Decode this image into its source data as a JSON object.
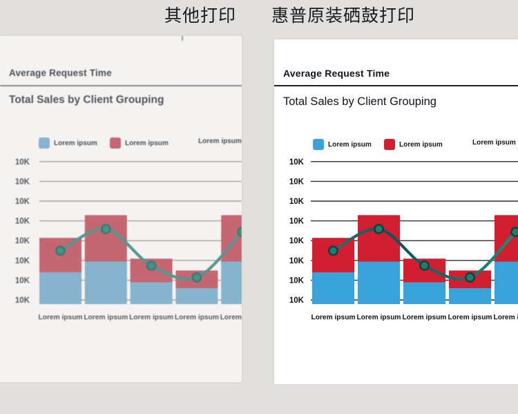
{
  "comparison": {
    "left_label": "其他打印",
    "right_label": "惠普原装硒鼓打印"
  },
  "document": {
    "header": "Average Request Time",
    "title": "Total Sales by Client Grouping",
    "legend": [
      {
        "label": "Lorem ipsum",
        "swatch": "blue"
      },
      {
        "label": "Lorem ipsum",
        "swatch": "red"
      },
      {
        "label": "Lorem ipsum",
        "swatch": "none"
      }
    ]
  },
  "chart_data": {
    "type": "bar",
    "subtype": "stacked-bars-with-line-overlay",
    "title": "Total Sales by Client Grouping",
    "categories": [
      "Lorem ipsum",
      "Lorem ipsum",
      "Lorem ipsum",
      "Lorem ipsum",
      "Lorem ipsum"
    ],
    "y_tick_labels": [
      "10K",
      "10K",
      "10K",
      "10K",
      "10K",
      "10K",
      "10K",
      "10K"
    ],
    "ylim": [
      0,
      7.5
    ],
    "grid": true,
    "legend_position": "top",
    "series": [
      {
        "name": "Lorem ipsum",
        "type": "bar",
        "stack": "base",
        "values": [
          1.6,
          2.15,
          1.1,
          0.8,
          2.15
        ]
      },
      {
        "name": "Lorem ipsum",
        "type": "bar",
        "stack": "top",
        "values": [
          1.75,
          2.35,
          1.2,
          0.9,
          2.35
        ]
      },
      {
        "name": "Lorem ipsum",
        "type": "line",
        "values": [
          2.7,
          3.8,
          1.95,
          1.35,
          3.65
        ]
      }
    ]
  },
  "colors": {
    "background": "#e1e0de",
    "crisp": {
      "page": "#ffffff",
      "blue": "#38a2d9",
      "red": "#d01f30",
      "line": [
        "#2c7f74",
        "#174f5a",
        "#15746a",
        "#0ba183"
      ],
      "dot": "#1b8066",
      "dot_ring": "#123f46",
      "grid": "#2e2e2e",
      "text": "#111111"
    },
    "faded": {
      "page": "#f4f3f1",
      "blue": "#7fb8d8",
      "red": "#d5626e",
      "line": [
        "#4a9a90",
        "#4a9a90",
        "#4a9a90",
        "#4a9a90"
      ],
      "dot": "#3e948a",
      "dot_ring": "#2e7c72",
      "grid": "#a3a19e",
      "text": "#54575c"
    }
  }
}
